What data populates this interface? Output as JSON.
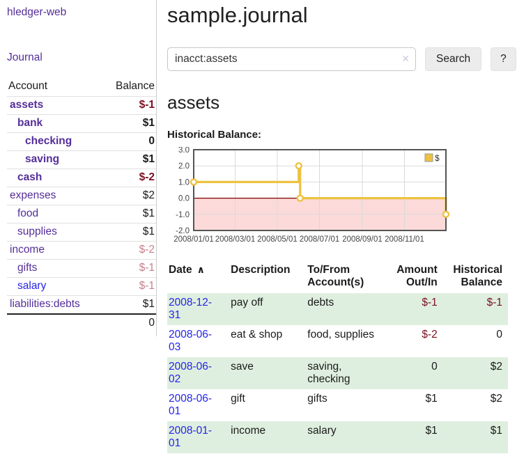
{
  "app_title": "hledger-web",
  "sidebar": {
    "journal_link": "Journal",
    "accounts_table": {
      "account_header": "Account",
      "balance_header": "Balance",
      "rows": [
        {
          "name": "assets",
          "depth": 1,
          "balance": "$-1",
          "bold": true,
          "balance_style": "negative-strong"
        },
        {
          "name": "bank",
          "depth": 2,
          "balance": "$1",
          "bold": true,
          "balance_style": "normal"
        },
        {
          "name": "checking",
          "depth": 3,
          "balance": "0",
          "bold": true,
          "balance_style": "normal"
        },
        {
          "name": "saving",
          "depth": 3,
          "balance": "$1",
          "bold": true,
          "balance_style": "normal"
        },
        {
          "name": "cash",
          "depth": 2,
          "balance": "$-2",
          "bold": true,
          "balance_style": "negative-strong"
        },
        {
          "name": "expenses",
          "depth": 1,
          "balance": "$2",
          "bold": false,
          "balance_style": "normal"
        },
        {
          "name": "food",
          "depth": 2,
          "balance": "$1",
          "bold": false,
          "balance_style": "normal"
        },
        {
          "name": "supplies",
          "depth": 2,
          "balance": "$1",
          "bold": false,
          "balance_style": "normal"
        },
        {
          "name": "income",
          "depth": 1,
          "balance": "$-2",
          "bold": false,
          "balance_style": "negative-muted"
        },
        {
          "name": "gifts",
          "depth": 2,
          "balance": "$-1",
          "bold": false,
          "balance_style": "negative-muted"
        },
        {
          "name": "salary",
          "depth": 2,
          "balance": "$-1",
          "bold": false,
          "balance_style": "negative-muted",
          "link_style": "unvisited"
        },
        {
          "name": "liabilities:debts",
          "depth": 1,
          "balance": "$1",
          "bold": false,
          "balance_style": "normal"
        }
      ],
      "total": "0"
    }
  },
  "main": {
    "title": "sample.journal",
    "search": {
      "value": "inacct:assets",
      "clear_icon": "✕",
      "search_button": "Search",
      "help_button": "?"
    },
    "account_heading": "assets",
    "chart_heading": "Historical Balance:"
  },
  "chart_data": {
    "type": "line",
    "step": true,
    "title": "Historical Balance:",
    "series": [
      {
        "name": "$",
        "color": "#edc240",
        "points": [
          [
            "2008-01-01",
            1
          ],
          [
            "2008-06-01",
            2
          ],
          [
            "2008-06-03",
            0
          ],
          [
            "2008-12-31",
            -1
          ]
        ]
      }
    ],
    "xlim": [
      "2008-01-01",
      "2008-12-31"
    ],
    "ylim": [
      -2,
      3
    ],
    "yticks": [
      "3.0",
      "2.0",
      "1.0",
      "0.0",
      "-1.0",
      "-2.0"
    ],
    "ytick_values": [
      3,
      2,
      1,
      0,
      -1,
      -2
    ],
    "xticks": [
      "2008/01/01",
      "2008/03/01",
      "2008/05/01",
      "2008/07/01",
      "2008/09/01",
      "2008/11/01"
    ],
    "legend_label": "$",
    "legend_position": "top-right",
    "grid": true,
    "marker": "circle",
    "zero_line_color": "#800000",
    "negative_region_fill": "#fcdada",
    "plot_border_color": "#545454",
    "grid_color": "#d9d9d9"
  },
  "register": {
    "headers": {
      "date": "Date",
      "sort_indicator": "∧",
      "description": "Description",
      "tofrom_lines": [
        "To/From",
        "Account(s)"
      ],
      "amount_lines": [
        "Amount",
        "Out/In"
      ],
      "balance_lines": [
        "Historical",
        "Balance"
      ]
    },
    "rows": [
      {
        "date": "2008-12-31",
        "description": "pay off",
        "accounts": "debts",
        "accounts_lines": [
          "debts"
        ],
        "amount": "$-1",
        "amount_negative": true,
        "balance": "$-1",
        "balance_negative": true
      },
      {
        "date": "2008-06-03",
        "description": "eat & shop",
        "accounts": "food, supplies",
        "accounts_lines": [
          "food, supplies"
        ],
        "amount": "$-2",
        "amount_negative": true,
        "balance": "0",
        "balance_negative": false
      },
      {
        "date": "2008-06-02",
        "description": "save",
        "accounts": "saving, checking",
        "accounts_lines": [
          "saving,",
          "checking"
        ],
        "amount": "0",
        "amount_negative": false,
        "balance": "$2",
        "balance_negative": false
      },
      {
        "date": "2008-06-01",
        "description": "gift",
        "accounts": "gifts",
        "accounts_lines": [
          "gifts"
        ],
        "amount": "$1",
        "amount_negative": false,
        "balance": "$2",
        "balance_negative": false
      },
      {
        "date": "2008-01-01",
        "description": "income",
        "accounts": "salary",
        "accounts_lines": [
          "salary"
        ],
        "amount": "$1",
        "amount_negative": false,
        "balance": "$1",
        "balance_negative": false
      }
    ]
  },
  "colors": {
    "link_visited": "#552e99",
    "link_unvisited": "#2424e8",
    "negative_strong": "#7b1022",
    "negative_muted": "#c5808a",
    "row_stripe": "#dfefdf"
  }
}
